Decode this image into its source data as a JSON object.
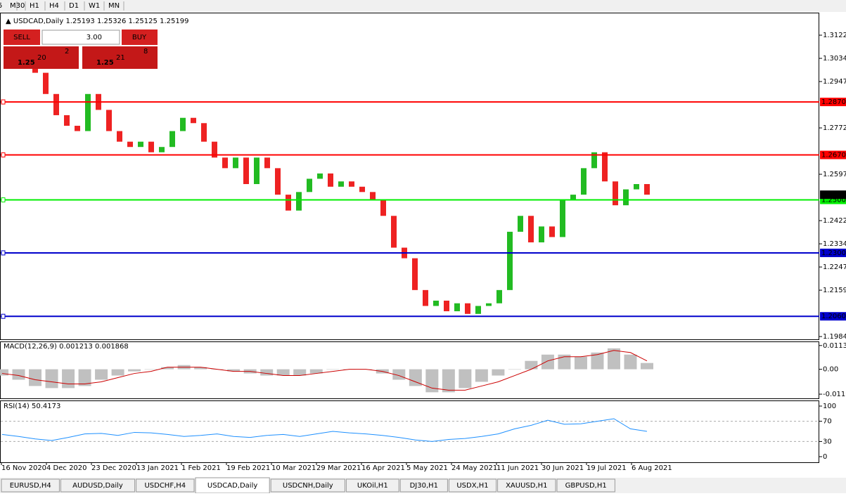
{
  "toolbar": {
    "timeframes": [
      "5",
      "M30",
      "H1",
      "H4",
      "D1",
      "W1",
      "MN"
    ]
  },
  "header": {
    "symbol": "USDCAD,Daily",
    "open": 1.25193,
    "high": 1.25326,
    "low": 1.25125,
    "close": 1.25199
  },
  "trade_panel": {
    "sell": "SELL",
    "buy": "BUY",
    "lots": "3.00",
    "sell_price": {
      "big": "1.25",
      "pips": "20",
      "point": "2"
    },
    "buy_price": {
      "big": "1.25",
      "pips": "21",
      "point": "8"
    }
  },
  "chart_data": [
    {
      "type": "candlestick",
      "up_color": "#22bb22",
      "down_color": "#ee2222",
      "closes": [
        1.303,
        1.298,
        1.29,
        1.282,
        1.278,
        1.276,
        1.29,
        1.284,
        1.276,
        1.272,
        1.27,
        1.272,
        1.268,
        1.27,
        1.276,
        1.281,
        1.279,
        1.272,
        1.266,
        1.262,
        1.266,
        1.256,
        1.266,
        1.262,
        1.252,
        1.246,
        1.253,
        1.258,
        1.26,
        1.255,
        1.257,
        1.255,
        1.253,
        1.25,
        1.244,
        1.232,
        1.228,
        1.216,
        1.21,
        1.212,
        1.208,
        1.211,
        1.207,
        1.21,
        1.211,
        1.216,
        1.238,
        1.244,
        1.234,
        1.24,
        1.236,
        1.25,
        1.252,
        1.262,
        1.268,
        1.257,
        1.248,
        1.254,
        1.256,
        1.252
      ],
      "ylim": [
        1.1974,
        1.3207
      ],
      "yticks": [
        {
          "value": 1.3122,
          "label": "1.31220"
        },
        1.30345,
        {
          "value": 1.2947,
          "label": "1.29470"
        },
        {
          "value": 1.2772,
          "label": "1.27720"
        },
        {
          "value": 1.2597,
          "label": "1.25970"
        },
        {
          "value": 1.2422,
          "label": "1.24220"
        },
        1.23345,
        {
          "value": 1.2247,
          "label": "1.22470"
        },
        1.21595,
        1.19845
      ],
      "levels": [
        {
          "value": 1.287,
          "label": "1.28700",
          "color": "#ff0000"
        },
        {
          "value": 1.267,
          "label": "1.26700",
          "color": "#ff0000"
        },
        {
          "value": 1.25003,
          "label": "1.25003",
          "color": "#00ee00"
        },
        {
          "value": 1.23003,
          "label": "1.23003",
          "color": "#0000cc"
        },
        {
          "value": 1.20609,
          "label": "1.20609",
          "color": "#0000cc"
        }
      ],
      "x_labels": [
        "16 Nov 2020",
        "4 Dec 2020",
        "23 Dec 2020",
        "13 Jan 2021",
        "1 Feb 2021",
        "19 Feb 2021",
        "10 Mar 2021",
        "29 Mar 2021",
        "16 Apr 2021",
        "5 May 2021",
        "24 May 2021",
        "11 Jun 2021",
        "30 Jun 2021",
        "19 Jul 2021",
        "6 Aug 2021"
      ]
    },
    {
      "type": "macd",
      "label": "MACD(12,26,9)",
      "main": 0.001213,
      "signal": 0.001868,
      "hist_color": "#c0c0c0",
      "signal_color": "#cc0000",
      "histogram": [
        -0.003,
        -0.005,
        -0.008,
        -0.009,
        -0.009,
        -0.008,
        -0.005,
        -0.003,
        -0.001,
        0.0,
        0.001,
        0.002,
        0.001,
        0.0,
        -0.001,
        -0.002,
        -0.003,
        -0.003,
        -0.003,
        -0.002,
        0.0,
        0.0,
        0.0,
        -0.002,
        -0.005,
        -0.008,
        -0.011,
        -0.011,
        -0.009,
        -0.006,
        -0.003,
        0.0,
        0.004,
        0.007,
        0.007,
        0.006,
        0.008,
        0.01,
        0.007,
        0.003
      ],
      "signal_line": [
        -0.002,
        -0.003,
        -0.005,
        -0.006,
        -0.007,
        -0.007,
        -0.006,
        -0.004,
        -0.002,
        -0.001,
        0.001,
        0.001,
        0.001,
        0.0,
        -0.001,
        -0.001,
        -0.002,
        -0.003,
        -0.003,
        -0.002,
        -0.001,
        0.0,
        0.0,
        -0.001,
        -0.003,
        -0.006,
        -0.009,
        -0.01,
        -0.01,
        -0.008,
        -0.006,
        -0.003,
        0.0,
        0.004,
        0.006,
        0.006,
        0.007,
        0.009,
        0.008,
        0.004
      ],
      "ylim": [
        -0.0139,
        0.0133
      ],
      "yticks": [
        0.01135,
        {
          "value": 0,
          "label": "0.00"
        },
        {
          "value": -0.0119,
          "label": "-0.01190"
        }
      ]
    },
    {
      "type": "rsi",
      "label": "RSI(14)",
      "value": 50.4173,
      "color": "#1e90ff",
      "values": [
        44,
        40,
        35,
        32,
        38,
        45,
        46,
        42,
        48,
        47,
        44,
        40,
        42,
        45,
        40,
        38,
        42,
        44,
        40,
        45,
        50,
        47,
        45,
        42,
        38,
        33,
        30,
        34,
        36,
        40,
        45,
        55,
        62,
        72,
        64,
        65,
        70,
        75,
        55,
        50
      ],
      "ylim": [
        -11.1,
        111.1
      ],
      "yticks": [
        100,
        70,
        30,
        0
      ],
      "levels": [
        70,
        30
      ]
    }
  ],
  "tabs": {
    "items": [
      "EURUSD,H4",
      "AUDUSD,Daily",
      "USDCHF,H4",
      "USDCAD,Daily",
      "USDCNH,Daily",
      "UKOil,H1",
      "DJ30,H1",
      "USDX,H1",
      "XAUUSD,H1",
      "GBPUSD,H1"
    ],
    "active": 3
  }
}
